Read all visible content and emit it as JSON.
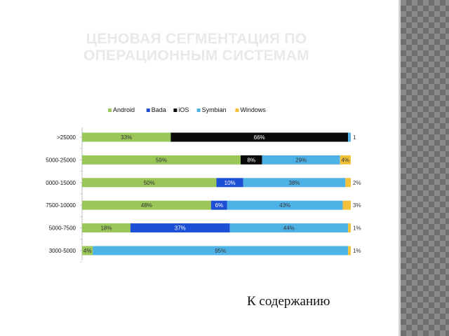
{
  "slide": {
    "title_line1": "ЦЕНОВАЯ СЕГМЕНТАЦИЯ ПО",
    "title_line2": "ОПЕРАЦИОННЫМ СИСТЕМАМ",
    "contents_link": "К содержанию"
  },
  "chart_data": {
    "type": "bar",
    "orientation": "horizontal",
    "stacked": true,
    "legend_position": "top",
    "categories": [
      ">25000",
      "5000-25000",
      "0000-15000",
      "7500-10000",
      "5000-7500",
      "3000-5000"
    ],
    "series": [
      {
        "name": "Android",
        "color": "#9bc65a",
        "values": [
          33,
          59,
          50,
          48,
          18,
          4
        ],
        "labels": [
          "33%",
          "59%",
          "50%",
          "48%",
          "18%",
          "4%"
        ]
      },
      {
        "name": "Bada",
        "color": "#1c4fd6",
        "values": [
          0,
          0,
          10,
          6,
          37,
          0
        ],
        "labels": [
          "",
          "",
          "10%",
          "6%",
          "37%",
          ""
        ]
      },
      {
        "name": "iOS",
        "color": "#0a0a0a",
        "values": [
          66,
          8,
          0,
          0,
          0,
          0
        ],
        "labels": [
          "66%",
          "8%",
          "",
          "",
          "",
          ""
        ]
      },
      {
        "name": "Symbian",
        "color": "#4fb2e6",
        "values": [
          1,
          29,
          38,
          43,
          44,
          95
        ],
        "labels": [
          "1",
          "29%",
          "38%",
          "43%",
          "44%",
          "95%"
        ]
      },
      {
        "name": "Windows",
        "color": "#f4c23a",
        "values": [
          0,
          4,
          2,
          3,
          1,
          1
        ],
        "labels": [
          "",
          "4%",
          "2%",
          "3%",
          "1%",
          "1%"
        ]
      }
    ]
  }
}
